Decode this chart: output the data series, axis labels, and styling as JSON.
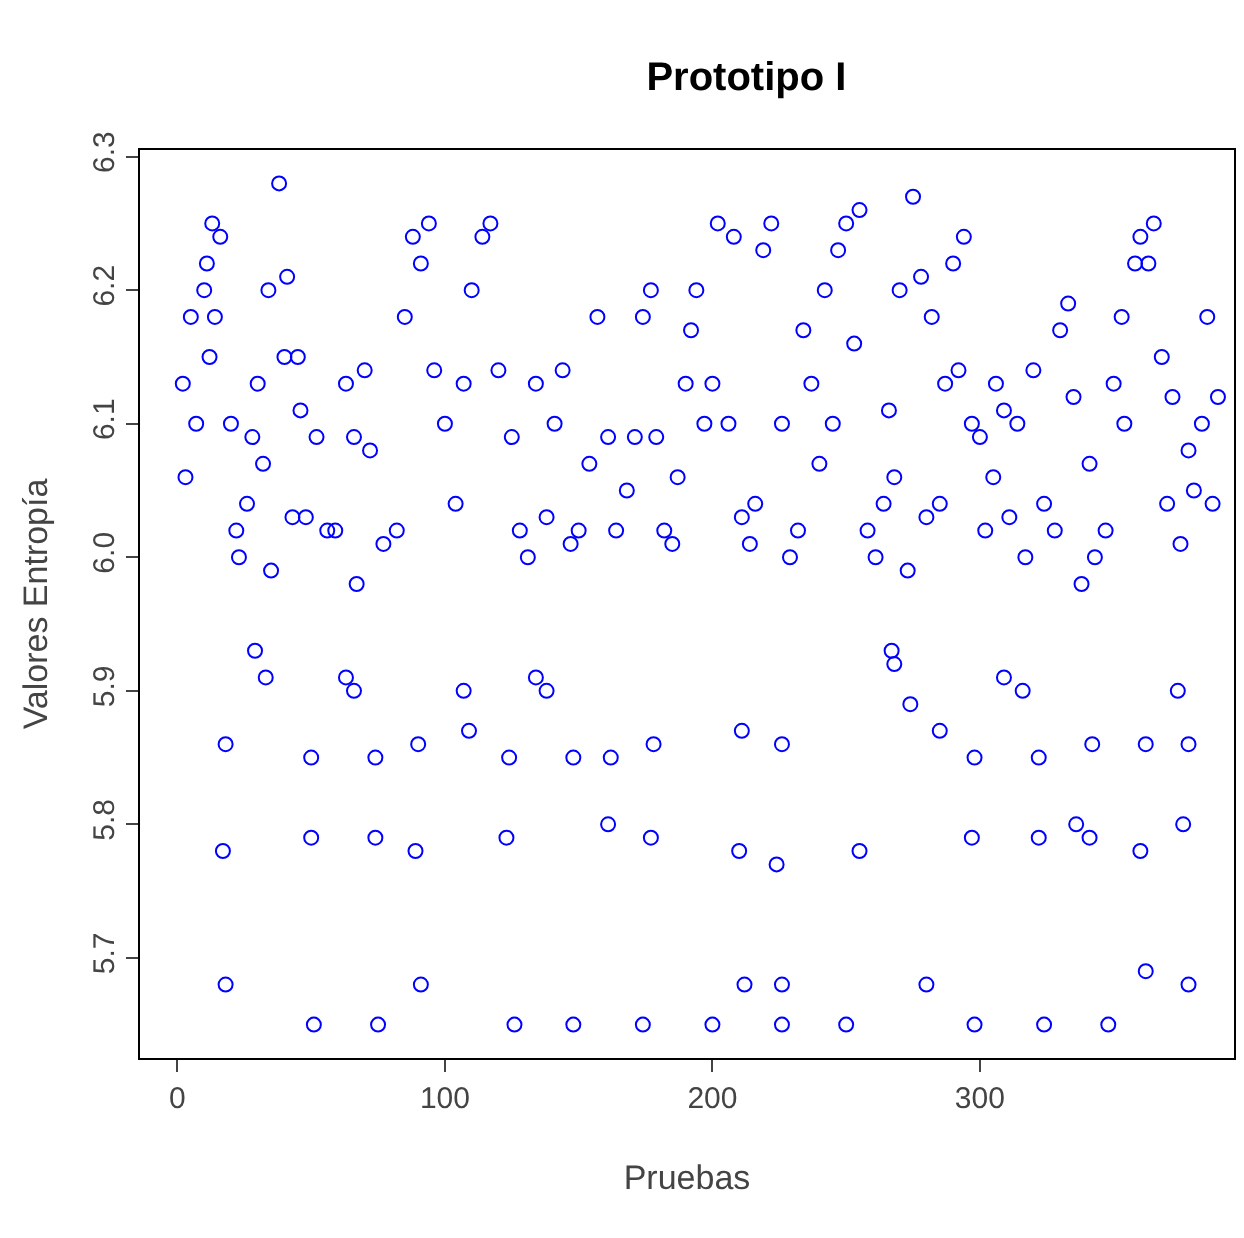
{
  "chart_data": {
    "type": "scatter",
    "title": "Prototipo I",
    "xlabel": "Pruebas",
    "ylabel": "Valores Entropía",
    "x": [
      51,
      75,
      126,
      148,
      174,
      200,
      226,
      250,
      298,
      324,
      348,
      18,
      91,
      212,
      226,
      280,
      378,
      362,
      17,
      50,
      74,
      89,
      123,
      177,
      210,
      224,
      255,
      297,
      322,
      336,
      341,
      360,
      376,
      161,
      18,
      50,
      74,
      90,
      109,
      124,
      148,
      162,
      178,
      211,
      226,
      274,
      285,
      298,
      322,
      342,
      362,
      378,
      29,
      33,
      63,
      66,
      107,
      134,
      138,
      267,
      268,
      309,
      316,
      374,
      2,
      3,
      5,
      7,
      10,
      11,
      12,
      13,
      14,
      16,
      20,
      22,
      23,
      26,
      28,
      30,
      32,
      34,
      35,
      38,
      40,
      41,
      43,
      45,
      46,
      48,
      52,
      56,
      59,
      63,
      66,
      67,
      70,
      72,
      77,
      82,
      85,
      88,
      91,
      94,
      96,
      100,
      104,
      107,
      110,
      114,
      117,
      120,
      125,
      128,
      131,
      134,
      138,
      141,
      144,
      147,
      150,
      154,
      157,
      161,
      164,
      168,
      171,
      174,
      177,
      179,
      182,
      185,
      187,
      190,
      192,
      194,
      197,
      200,
      202,
      206,
      208,
      211,
      214,
      216,
      219,
      222,
      226,
      229,
      232,
      234,
      237,
      240,
      242,
      245,
      247,
      250,
      253,
      255,
      258,
      261,
      264,
      266,
      268,
      270,
      273,
      275,
      278,
      280,
      282,
      285,
      287,
      290,
      292,
      294,
      297,
      300,
      302,
      305,
      306,
      309,
      311,
      314,
      317,
      320,
      324,
      328,
      330,
      333,
      335,
      338,
      341,
      343,
      347,
      350,
      353,
      354,
      358,
      360,
      363,
      365,
      368,
      370,
      372,
      375,
      378,
      380,
      383,
      385,
      387,
      389
    ],
    "values": [
      5.65,
      5.65,
      5.65,
      5.65,
      5.65,
      5.65,
      5.65,
      5.65,
      5.65,
      5.65,
      5.65,
      5.68,
      5.68,
      5.68,
      5.68,
      5.68,
      5.68,
      5.69,
      5.78,
      5.79,
      5.79,
      5.78,
      5.79,
      5.79,
      5.78,
      5.77,
      5.78,
      5.79,
      5.79,
      5.8,
      5.79,
      5.78,
      5.8,
      5.8,
      5.86,
      5.85,
      5.85,
      5.86,
      5.87,
      5.85,
      5.85,
      5.85,
      5.86,
      5.87,
      5.86,
      5.89,
      5.87,
      5.85,
      5.85,
      5.86,
      5.86,
      5.86,
      5.93,
      5.91,
      5.91,
      5.9,
      5.9,
      5.91,
      5.9,
      5.93,
      5.92,
      5.91,
      5.9,
      5.9,
      6.13,
      6.06,
      6.18,
      6.1,
      6.2,
      6.22,
      6.15,
      6.25,
      6.18,
      6.24,
      6.1,
      6.02,
      6.0,
      6.04,
      6.09,
      6.13,
      6.07,
      6.2,
      5.99,
      6.28,
      6.15,
      6.21,
      6.03,
      6.15,
      6.11,
      6.03,
      6.09,
      6.02,
      6.02,
      6.13,
      6.09,
      5.98,
      6.14,
      6.08,
      6.01,
      6.02,
      6.18,
      6.24,
      6.22,
      6.25,
      6.14,
      6.1,
      6.04,
      6.13,
      6.2,
      6.24,
      6.25,
      6.14,
      6.09,
      6.02,
      6.0,
      6.13,
      6.03,
      6.1,
      6.14,
      6.01,
      6.02,
      6.07,
      6.18,
      6.09,
      6.02,
      6.05,
      6.09,
      6.18,
      6.2,
      6.09,
      6.02,
      6.01,
      6.06,
      6.13,
      6.17,
      6.2,
      6.1,
      6.13,
      6.25,
      6.1,
      6.24,
      6.03,
      6.01,
      6.04,
      6.23,
      6.25,
      6.1,
      6.0,
      6.02,
      6.17,
      6.13,
      6.07,
      6.2,
      6.1,
      6.23,
      6.25,
      6.16,
      6.26,
      6.02,
      6.0,
      6.04,
      6.11,
      6.06,
      6.2,
      5.99,
      6.27,
      6.21,
      6.03,
      6.18,
      6.04,
      6.13,
      6.22,
      6.14,
      6.24,
      6.1,
      6.09,
      6.02,
      6.06,
      6.13,
      6.11,
      6.03,
      6.1,
      6.0,
      6.14,
      6.04,
      6.02,
      6.17,
      6.19,
      6.12,
      5.98,
      6.07,
      6.0,
      6.02,
      6.13,
      6.18,
      6.1,
      6.22,
      6.24,
      6.22,
      6.25,
      6.15,
      6.04,
      6.12,
      6.01,
      6.08,
      6.05,
      6.1,
      6.18,
      6.04,
      6.12
    ],
    "color": "#0000ff",
    "marker": "circle",
    "xlim": [
      -14,
      395
    ],
    "ylim": [
      5.625,
      6.305
    ],
    "xticks": [
      0,
      100,
      200,
      300
    ],
    "yticks": [
      5.7,
      5.8,
      5.9,
      {
        "value": 6.0,
        "label": "6.0"
      },
      6.1,
      6.2,
      6.3
    ]
  }
}
